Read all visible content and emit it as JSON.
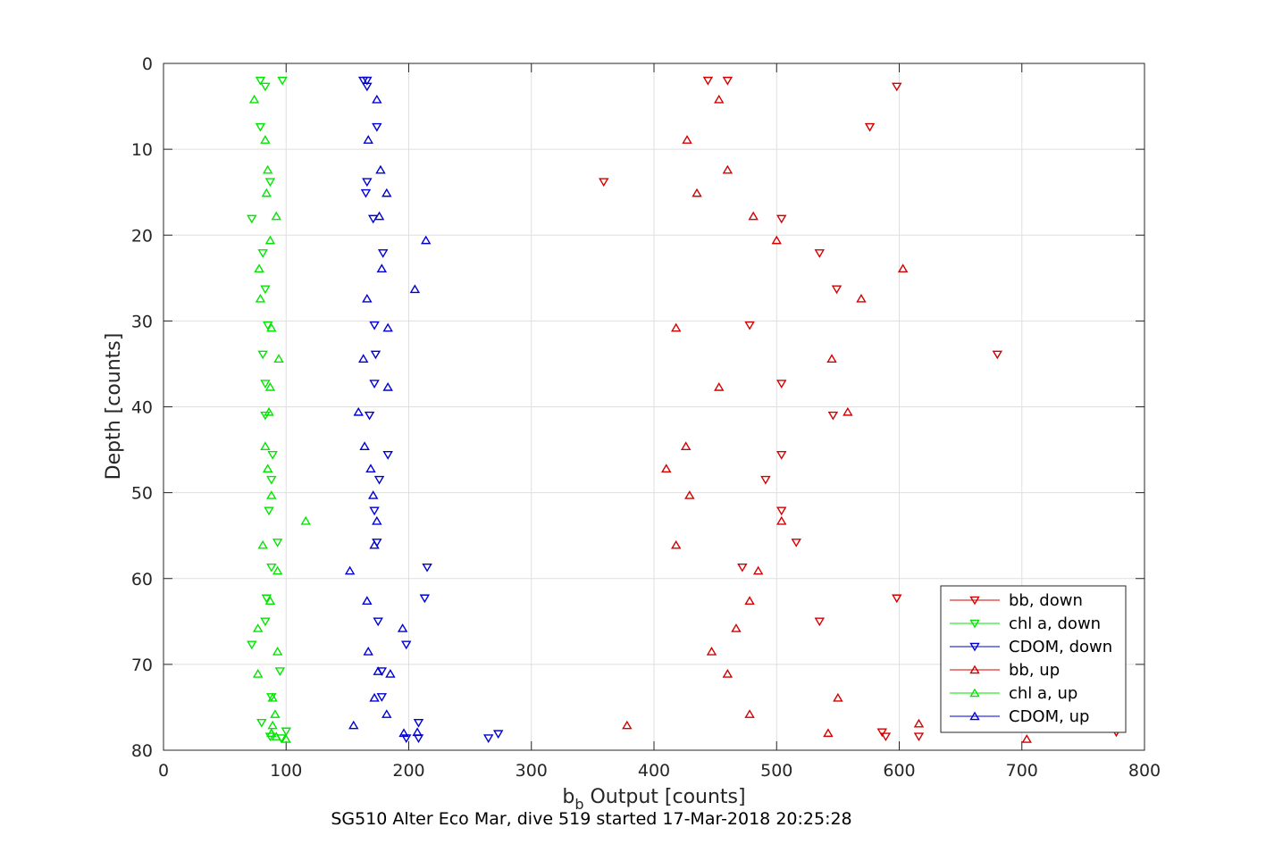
{
  "chart_data": {
    "type": "scatter",
    "xlabel_main": "b",
    "xlabel_sub": "b",
    "xlabel_rest": " Output [counts]",
    "ylabel": "Depth [counts]",
    "caption": "SG510 Alter Eco Mar, dive 519 started 17-Mar-2018 20:25:28",
    "xlim": [
      0,
      800
    ],
    "ylim": [
      0,
      80
    ],
    "y_reversed": true,
    "grid": true,
    "legend_position": "bottom-right",
    "x_ticks": [
      0,
      100,
      200,
      300,
      400,
      500,
      600,
      700,
      800
    ],
    "y_ticks": [
      0,
      10,
      20,
      30,
      40,
      50,
      60,
      70,
      80
    ],
    "series": [
      {
        "name": "bb, down",
        "color": "#d40000",
        "marker": "triangle-down",
        "points": [
          [
            444,
            2
          ],
          [
            460,
            2
          ],
          [
            598,
            2.7
          ],
          [
            576,
            7.4
          ],
          [
            359,
            13.8
          ],
          [
            504,
            18.1
          ],
          [
            535,
            22.1
          ],
          [
            549,
            26.3
          ],
          [
            478,
            30.5
          ],
          [
            680,
            33.9
          ],
          [
            504,
            37.3
          ],
          [
            546,
            41
          ],
          [
            504,
            45.6
          ],
          [
            491,
            48.5
          ],
          [
            504,
            52.1
          ],
          [
            516,
            55.8
          ],
          [
            472,
            58.7
          ],
          [
            598,
            62.3
          ],
          [
            535,
            65
          ],
          [
            586,
            77.9
          ],
          [
            589,
            78.4
          ],
          [
            616,
            78.4
          ],
          [
            777,
            77.9
          ]
        ]
      },
      {
        "name": "chl a, down",
        "color": "#00e600",
        "marker": "triangle-down",
        "points": [
          [
            79,
            2
          ],
          [
            97,
            2
          ],
          [
            83,
            2.7
          ],
          [
            79,
            7.4
          ],
          [
            87,
            13.8
          ],
          [
            72,
            18.1
          ],
          [
            81,
            22.1
          ],
          [
            83,
            26.3
          ],
          [
            85,
            30.5
          ],
          [
            81,
            33.9
          ],
          [
            83,
            37.3
          ],
          [
            83,
            41
          ],
          [
            89,
            45.6
          ],
          [
            88,
            48.5
          ],
          [
            86,
            52.1
          ],
          [
            93,
            55.8
          ],
          [
            88,
            58.7
          ],
          [
            84,
            62.3
          ],
          [
            83,
            65
          ],
          [
            72,
            67.7
          ],
          [
            95,
            70.8
          ],
          [
            88,
            73.8
          ],
          [
            80,
            76.8
          ],
          [
            100,
            77.8
          ],
          [
            87,
            78.4
          ],
          [
            96,
            78.6
          ]
        ]
      },
      {
        "name": "CDOM, down",
        "color": "#0000d4",
        "marker": "triangle-down",
        "points": [
          [
            163,
            2
          ],
          [
            166,
            2
          ],
          [
            166,
            2.7
          ],
          [
            174,
            7.4
          ],
          [
            166,
            13.8
          ],
          [
            171,
            18.1
          ],
          [
            179,
            22.1
          ],
          [
            165,
            15.1
          ],
          [
            172,
            30.5
          ],
          [
            173,
            33.9
          ],
          [
            172,
            37.3
          ],
          [
            168,
            41
          ],
          [
            183,
            45.6
          ],
          [
            176,
            48.5
          ],
          [
            172,
            52.1
          ],
          [
            174,
            55.8
          ],
          [
            215,
            58.7
          ],
          [
            213,
            62.3
          ],
          [
            175,
            65
          ],
          [
            198,
            67.7
          ],
          [
            178,
            70.8
          ],
          [
            178,
            73.8
          ],
          [
            208,
            76.8
          ],
          [
            198,
            78.6
          ],
          [
            208,
            78.6
          ],
          [
            265,
            78.6
          ],
          [
            273,
            78.1
          ]
        ]
      },
      {
        "name": "bb, up",
        "color": "#d40000",
        "marker": "triangle-up",
        "points": [
          [
            453,
            4.2
          ],
          [
            427,
            8.9
          ],
          [
            460,
            12.4
          ],
          [
            435,
            15.1
          ],
          [
            481,
            17.8
          ],
          [
            500,
            20.6
          ],
          [
            603,
            23.9
          ],
          [
            569,
            27.4
          ],
          [
            418,
            30.8
          ],
          [
            545,
            34.4
          ],
          [
            453,
            37.7
          ],
          [
            558,
            40.6
          ],
          [
            426,
            44.6
          ],
          [
            410,
            47.2
          ],
          [
            429,
            50.3
          ],
          [
            504,
            53.3
          ],
          [
            418,
            56.1
          ],
          [
            485,
            59.1
          ],
          [
            478,
            62.6
          ],
          [
            467,
            65.8
          ],
          [
            447,
            68.5
          ],
          [
            460,
            71.1
          ],
          [
            550,
            73.9
          ],
          [
            478,
            75.8
          ],
          [
            378,
            77.1
          ],
          [
            542,
            78.0
          ],
          [
            704,
            78.7
          ],
          [
            616,
            76.9
          ]
        ]
      },
      {
        "name": "chl a, up",
        "color": "#00e600",
        "marker": "triangle-up",
        "points": [
          [
            74,
            4.2
          ],
          [
            83,
            8.9
          ],
          [
            85,
            12.4
          ],
          [
            84,
            15.1
          ],
          [
            92,
            17.8
          ],
          [
            87,
            20.6
          ],
          [
            78,
            23.9
          ],
          [
            79,
            27.4
          ],
          [
            88,
            30.8
          ],
          [
            94,
            34.4
          ],
          [
            87,
            37.7
          ],
          [
            86,
            40.6
          ],
          [
            83,
            44.6
          ],
          [
            85,
            47.2
          ],
          [
            88,
            50.3
          ],
          [
            116,
            53.3
          ],
          [
            81,
            56.1
          ],
          [
            93,
            59.1
          ],
          [
            87,
            62.6
          ],
          [
            77,
            65.8
          ],
          [
            93,
            68.5
          ],
          [
            77,
            71.1
          ],
          [
            89,
            73.9
          ],
          [
            91,
            75.8
          ],
          [
            89,
            77.1
          ],
          [
            88,
            78.0
          ],
          [
            100,
            78.7
          ],
          [
            92,
            78.4
          ]
        ]
      },
      {
        "name": "CDOM, up",
        "color": "#0000d4",
        "marker": "triangle-up",
        "points": [
          [
            174,
            4.2
          ],
          [
            167,
            8.9
          ],
          [
            177,
            12.4
          ],
          [
            182,
            15.1
          ],
          [
            176,
            17.8
          ],
          [
            214,
            20.6
          ],
          [
            178,
            23.9
          ],
          [
            205,
            26.3
          ],
          [
            166,
            27.4
          ],
          [
            183,
            30.8
          ],
          [
            163,
            34.4
          ],
          [
            183,
            37.7
          ],
          [
            159,
            40.6
          ],
          [
            164,
            44.6
          ],
          [
            169,
            47.2
          ],
          [
            171,
            50.3
          ],
          [
            174,
            53.3
          ],
          [
            172,
            56.1
          ],
          [
            152,
            59.1
          ],
          [
            166,
            62.6
          ],
          [
            195,
            65.8
          ],
          [
            167,
            68.5
          ],
          [
            185,
            71.1
          ],
          [
            172,
            73.9
          ],
          [
            182,
            75.8
          ],
          [
            155,
            77.1
          ],
          [
            196,
            78.0
          ],
          [
            207,
            77.9
          ],
          [
            175,
            70.8
          ]
        ]
      }
    ]
  }
}
